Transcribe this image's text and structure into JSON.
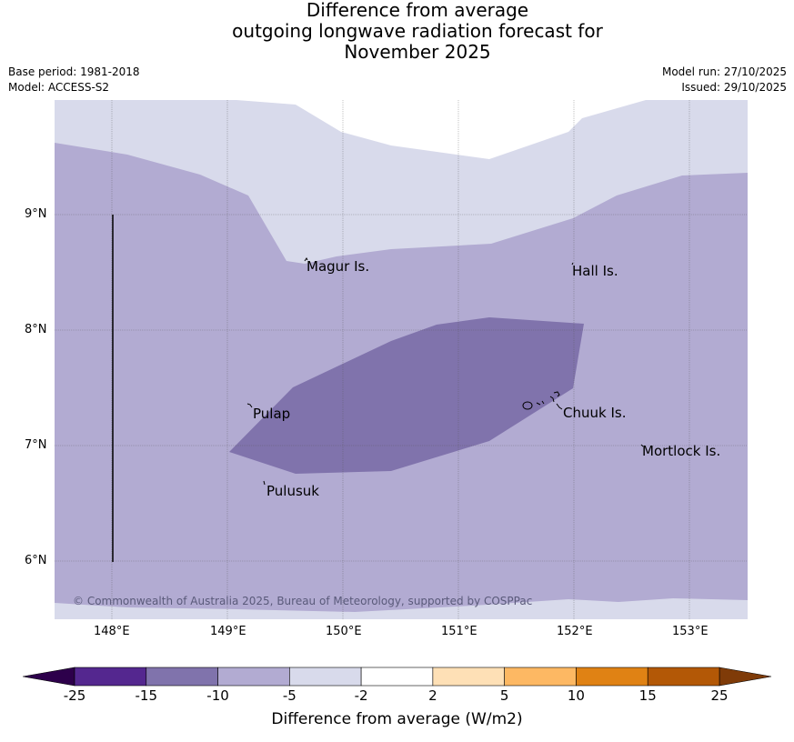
{
  "title": {
    "line1": "Difference from average",
    "line2": "outgoing longwave radiation forecast for",
    "line3": "November 2025"
  },
  "meta": {
    "base_period": "Base period: 1981-2018",
    "model": "Model: ACCESS-S2",
    "model_run": "Model run: 27/10/2025",
    "issued": "Issued: 29/10/2025"
  },
  "map": {
    "lat_ticks": [
      "9°N",
      "8°N",
      "7°N",
      "6°N"
    ],
    "lon_ticks": [
      "148°E",
      "149°E",
      "150°E",
      "151°E",
      "152°E",
      "153°E"
    ],
    "places": [
      "Magur Is.",
      "Hall Is.",
      "Pulap",
      "Chuuk Is.",
      "Mortlock Is.",
      "Pulusuk"
    ],
    "copyright": "© Commonwealth of Australia 2025, Bureau of Meteorology, supported by COSPPac"
  },
  "colorbar": {
    "labels": [
      "-25",
      "-15",
      "-10",
      "-5",
      "-2",
      "2",
      "5",
      "10",
      "15",
      "25"
    ],
    "colors": [
      "#54278f",
      "#8073ac",
      "#b2abd2",
      "#d8daeb",
      "#ffffff",
      "#fee0b6",
      "#fdb863",
      "#e08214",
      "#b35806"
    ],
    "under_color": "#2d004b",
    "over_color": "#7f3b08",
    "title": "Difference from average (W/m2)"
  },
  "colors": {
    "band_light": "#d8daeb",
    "band_mid": "#b2abd2",
    "band_dark": "#8073ac"
  }
}
